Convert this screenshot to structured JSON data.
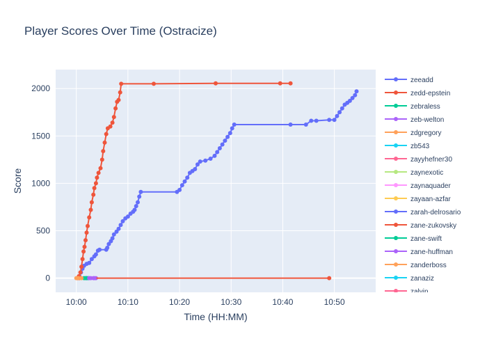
{
  "chart_data": {
    "type": "line",
    "title": "Player Scores Over Time (Ostracize)",
    "xlabel": "Time (HH:MM)",
    "ylabel": "Score",
    "x_ticks": [
      "10:00",
      "10:10",
      "10:20",
      "10:30",
      "10:40",
      "10:50"
    ],
    "y_ticks": [
      0,
      500,
      1000,
      1500,
      2000
    ],
    "xlim_minutes": [
      -4,
      58
    ],
    "ylim": [
      -150,
      2200
    ],
    "grid": true,
    "legend_position": "right",
    "series": [
      {
        "name": "zeeadd",
        "color": "#636efa",
        "points": [
          [
            0.3,
            0
          ],
          [
            0.6,
            20
          ],
          [
            0.9,
            60
          ],
          [
            1.2,
            100
          ],
          [
            1.5,
            130
          ],
          [
            2,
            150
          ],
          [
            2.5,
            160
          ],
          [
            3,
            200
          ],
          [
            3.5,
            230
          ],
          [
            3.8,
            250
          ],
          [
            4.2,
            290
          ],
          [
            4.5,
            300
          ],
          [
            5.8,
            300
          ],
          [
            6.0,
            320
          ],
          [
            6.3,
            360
          ],
          [
            6.7,
            390
          ],
          [
            7,
            420
          ],
          [
            7.3,
            460
          ],
          [
            7.8,
            490
          ],
          [
            8.2,
            520
          ],
          [
            8.6,
            560
          ],
          [
            9,
            600
          ],
          [
            9.5,
            630
          ],
          [
            10,
            650
          ],
          [
            10.5,
            680
          ],
          [
            11,
            700
          ],
          [
            11.3,
            720
          ],
          [
            11.6,
            760
          ],
          [
            11.9,
            800
          ],
          [
            12.2,
            860
          ],
          [
            12.5,
            910
          ],
          [
            19.5,
            910
          ],
          [
            20,
            930
          ],
          [
            20.5,
            980
          ],
          [
            21,
            1020
          ],
          [
            21.5,
            1060
          ],
          [
            22,
            1110
          ],
          [
            22.5,
            1130
          ],
          [
            23,
            1150
          ],
          [
            23.5,
            1200
          ],
          [
            24,
            1230
          ],
          [
            25,
            1240
          ],
          [
            26,
            1260
          ],
          [
            26.8,
            1290
          ],
          [
            27.3,
            1330
          ],
          [
            27.8,
            1370
          ],
          [
            28.3,
            1410
          ],
          [
            28.8,
            1450
          ],
          [
            29.3,
            1490
          ],
          [
            29.8,
            1530
          ],
          [
            30.2,
            1580
          ],
          [
            30.6,
            1620
          ],
          [
            41.5,
            1620
          ],
          [
            44.5,
            1620
          ],
          [
            45.5,
            1660
          ],
          [
            46.5,
            1660
          ],
          [
            49,
            1670
          ],
          [
            50,
            1670
          ],
          [
            50.5,
            1710
          ],
          [
            51,
            1750
          ],
          [
            51.5,
            1790
          ],
          [
            52,
            1830
          ],
          [
            52.5,
            1850
          ],
          [
            53,
            1870
          ],
          [
            53.5,
            1900
          ],
          [
            54,
            1930
          ],
          [
            54.3,
            1970
          ]
        ]
      },
      {
        "name": "zedd-epstein",
        "color": "#ef553b",
        "points": [
          [
            0.2,
            0
          ],
          [
            0.5,
            20
          ],
          [
            0.8,
            60
          ],
          [
            1.0,
            120
          ],
          [
            1.2,
            200
          ],
          [
            1.4,
            280
          ],
          [
            1.6,
            330
          ],
          [
            1.8,
            400
          ],
          [
            2.0,
            480
          ],
          [
            2.2,
            550
          ],
          [
            2.5,
            640
          ],
          [
            2.8,
            720
          ],
          [
            3.0,
            800
          ],
          [
            3.3,
            880
          ],
          [
            3.5,
            950
          ],
          [
            3.8,
            1000
          ],
          [
            4.0,
            1060
          ],
          [
            4.3,
            1110
          ],
          [
            4.7,
            1160
          ],
          [
            5.0,
            1250
          ],
          [
            5.2,
            1340
          ],
          [
            5.5,
            1430
          ],
          [
            5.8,
            1520
          ],
          [
            6.1,
            1580
          ],
          [
            6.6,
            1600
          ],
          [
            7.0,
            1640
          ],
          [
            7.3,
            1700
          ],
          [
            7.6,
            1790
          ],
          [
            7.9,
            1860
          ],
          [
            8.2,
            1880
          ],
          [
            8.5,
            1960
          ],
          [
            8.7,
            2050
          ],
          [
            15,
            2050
          ],
          [
            27,
            2055
          ],
          [
            39.5,
            2055
          ],
          [
            41.5,
            2055
          ]
        ]
      },
      {
        "name": "zebraless",
        "color": "#00cc96",
        "points": [
          [
            1.8,
            0
          ],
          [
            2.3,
            0
          ]
        ]
      },
      {
        "name": "zeb-welton",
        "color": "#ab63fa",
        "points": [
          [
            2.0,
            0
          ],
          [
            2.8,
            0
          ],
          [
            3.3,
            0
          ],
          [
            3.8,
            0
          ]
        ]
      },
      {
        "name": "zdgregory",
        "color": "#ffa15a",
        "points": [
          [
            0.0,
            0
          ],
          [
            0.6,
            0
          ]
        ]
      },
      {
        "name": "zb543",
        "color": "#19d3f3",
        "points": []
      },
      {
        "name": "zayyhefner30",
        "color": "#ff6692",
        "points": []
      },
      {
        "name": "zaynexotic",
        "color": "#b6e880",
        "points": []
      },
      {
        "name": "zaynaquader",
        "color": "#ff97ff",
        "points": []
      },
      {
        "name": "zayaan-azfar",
        "color": "#fecb52",
        "points": []
      },
      {
        "name": "zarah-delrosario",
        "color": "#636efa",
        "points": []
      },
      {
        "name": "zane-zukovsky",
        "color": "#ef553b",
        "points": [
          [
            0.5,
            0
          ],
          [
            49,
            0
          ]
        ]
      },
      {
        "name": "zane-swift",
        "color": "#00cc96",
        "points": [
          [
            1.5,
            0
          ],
          [
            2.0,
            0
          ]
        ]
      },
      {
        "name": "zane-huffman",
        "color": "#ab63fa",
        "points": [
          [
            2.5,
            0
          ],
          [
            3.5,
            0
          ]
        ]
      },
      {
        "name": "zanderboss",
        "color": "#ffa15a",
        "points": [
          [
            0.4,
            0
          ],
          [
            1.0,
            0
          ]
        ]
      },
      {
        "name": "zanaziz",
        "color": "#19d3f3",
        "points": []
      },
      {
        "name": "zalvin",
        "color": "#ff6692",
        "points": []
      }
    ]
  }
}
